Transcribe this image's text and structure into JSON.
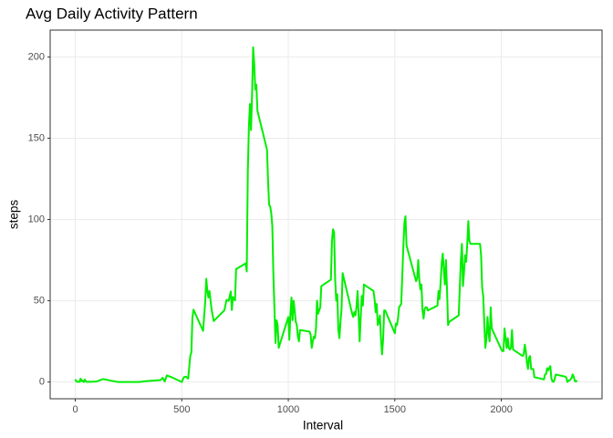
{
  "chart_data": {
    "type": "line",
    "title": "Avg Daily Activity Pattern",
    "x_label": "Interval",
    "y_label": "steps",
    "x": [
      0,
      5,
      10,
      15,
      20,
      25,
      30,
      35,
      40,
      45,
      50,
      55,
      100,
      130,
      200,
      230,
      300,
      330,
      400,
      410,
      420,
      430,
      440,
      450,
      500,
      510,
      520,
      530,
      540,
      545,
      550,
      555,
      600,
      610,
      615,
      620,
      625,
      630,
      640,
      650,
      700,
      710,
      720,
      730,
      735,
      740,
      750,
      755,
      800,
      805,
      810,
      815,
      820,
      825,
      830,
      835,
      840,
      845,
      850,
      855,
      900,
      905,
      910,
      915,
      920,
      925,
      930,
      935,
      940,
      945,
      950,
      955,
      1000,
      1005,
      1010,
      1015,
      1020,
      1025,
      1030,
      1035,
      1040,
      1045,
      1050,
      1055,
      1100,
      1105,
      1110,
      1115,
      1120,
      1125,
      1130,
      1135,
      1140,
      1145,
      1150,
      1155,
      1200,
      1205,
      1210,
      1215,
      1220,
      1225,
      1230,
      1235,
      1240,
      1245,
      1250,
      1255,
      1300,
      1305,
      1310,
      1315,
      1320,
      1325,
      1330,
      1335,
      1340,
      1345,
      1350,
      1355,
      1400,
      1405,
      1410,
      1415,
      1420,
      1425,
      1430,
      1435,
      1440,
      1445,
      1450,
      1455,
      1500,
      1505,
      1510,
      1515,
      1520,
      1525,
      1530,
      1535,
      1540,
      1545,
      1550,
      1555,
      1600,
      1605,
      1610,
      1615,
      1620,
      1625,
      1630,
      1635,
      1640,
      1645,
      1650,
      1655,
      1700,
      1705,
      1710,
      1715,
      1720,
      1725,
      1730,
      1735,
      1740,
      1745,
      1750,
      1755,
      1800,
      1805,
      1810,
      1815,
      1820,
      1825,
      1830,
      1835,
      1840,
      1845,
      1850,
      1855,
      1900,
      1905,
      1910,
      1915,
      1920,
      1925,
      1930,
      1935,
      1940,
      1945,
      1950,
      1955,
      2000,
      2005,
      2010,
      2015,
      2020,
      2025,
      2030,
      2035,
      2040,
      2045,
      2050,
      2055,
      2100,
      2105,
      2110,
      2115,
      2120,
      2125,
      2130,
      2135,
      2140,
      2145,
      2150,
      2155,
      2200,
      2205,
      2210,
      2215,
      2220,
      2225,
      2230,
      2235,
      2240,
      2245,
      2250,
      2255,
      2300,
      2305,
      2310,
      2315,
      2320,
      2325,
      2330,
      2335,
      2340,
      2345,
      2350,
      2355
    ],
    "series": [
      {
        "name": "steps",
        "color": "#00ee00",
        "values": [
          1.7,
          0.3,
          0.1,
          0.2,
          0.1,
          2.1,
          0.5,
          0.9,
          0,
          1.5,
          0.3,
          0.1,
          0.3,
          1.8,
          0,
          0,
          0,
          0.5,
          1.2,
          2.6,
          0.3,
          4.1,
          3.5,
          3.1,
          0,
          3,
          3.3,
          2.1,
          16,
          18.3,
          39.5,
          44.5,
          31.5,
          49.3,
          63.5,
          56.1,
          52,
          56,
          44.5,
          37.5,
          44.1,
          50.5,
          49.9,
          55.7,
          44.3,
          52.3,
          50.2,
          69.5,
          73,
          68,
          129,
          157,
          171,
          155,
          177,
          206,
          196,
          180,
          183,
          167,
          143,
          124,
          109,
          108,
          104,
          96,
          66,
          45,
          24,
          38,
          35,
          21,
          40,
          26,
          42,
          52,
          38,
          50,
          44,
          37,
          35,
          28,
          25,
          32,
          31,
          29,
          21,
          25,
          28,
          27,
          33,
          50,
          42,
          44,
          46,
          59,
          63,
          87,
          94,
          92,
          63,
          50,
          54,
          32,
          27,
          37,
          45,
          67,
          42,
          40,
          43,
          41,
          46,
          56,
          42,
          25,
          40,
          53,
          47,
          60,
          56,
          51,
          43,
          48,
          35,
          37,
          41,
          27,
          17,
          26,
          44,
          44,
          30,
          36,
          35,
          39,
          46,
          47,
          48,
          65,
          83,
          98,
          102,
          84,
          62,
          64,
          75,
          63,
          57,
          60,
          44,
          39,
          45,
          46,
          46,
          44,
          47,
          56,
          51,
          61,
          73,
          79,
          69,
          60,
          75,
          57,
          35,
          37,
          41,
          58,
          75,
          85,
          59,
          68,
          78,
          74,
          85,
          99,
          87,
          85,
          85,
          78,
          58,
          53,
          36,
          21,
          27,
          40,
          30,
          25,
          46,
          33,
          20,
          19,
          19,
          33,
          27,
          21,
          27,
          21,
          20,
          21,
          32,
          20,
          16,
          17,
          23,
          19,
          12,
          8,
          15,
          16,
          8,
          8,
          8,
          3,
          1.6,
          4.6,
          4.8,
          8.5,
          7.1,
          8.7,
          9.8,
          2.2,
          0.3,
          0.1,
          1.6,
          4.6,
          3.3,
          2.8,
          0,
          0.8,
          1,
          1.6,
          2.6,
          4.7,
          3.3,
          0.6,
          0.2,
          1.1
        ]
      }
    ],
    "xlim": [
      -117.75,
      2472.75
    ],
    "xticks": [
      0,
      500,
      1000,
      1500,
      2000
    ],
    "ylim": [
      -10.3,
      216.5
    ],
    "yticks": [
      0,
      50,
      100,
      150,
      200
    ],
    "grid": true
  }
}
